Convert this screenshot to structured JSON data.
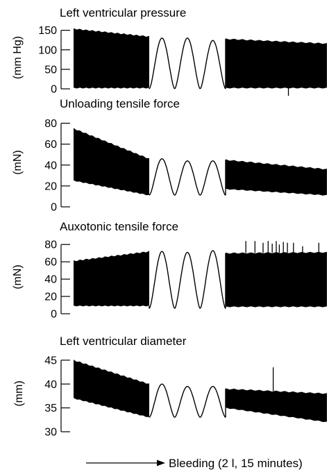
{
  "chart_data": [
    {
      "type": "line",
      "title": "Left ventricular pressure",
      "ylabel": "(mm Hg)",
      "ylim": [
        0,
        160
      ],
      "yticks": [
        0,
        50,
        100,
        150
      ],
      "band_start": {
        "max_from": 154,
        "max_to": 134,
        "min_from": 2,
        "min_to": 2
      },
      "cycles": [
        {
          "min": 0,
          "max": 130
        },
        {
          "min": 0,
          "max": 130
        },
        {
          "min": 0,
          "max": 124
        }
      ],
      "band_end": {
        "max_from": 128,
        "max_to": 116,
        "min_from": 2,
        "min_to": 2
      },
      "spikes": [
        {
          "pos": 0.62,
          "value": -18
        }
      ]
    },
    {
      "type": "line",
      "title": "Unloading tensile force",
      "ylabel": "(mN)",
      "ylim": [
        0,
        85
      ],
      "yticks": [
        0,
        20,
        40,
        60,
        80
      ],
      "band_start": {
        "max_from": 75,
        "max_to": 46,
        "min_from": 25,
        "min_to": 11
      },
      "cycles": [
        {
          "min": 11,
          "max": 46
        },
        {
          "min": 11,
          "max": 44
        },
        {
          "min": 11,
          "max": 44
        }
      ],
      "band_end": {
        "max_from": 45,
        "max_to": 36,
        "min_from": 17,
        "min_to": 11
      },
      "spikes": []
    },
    {
      "type": "line",
      "title": "Auxotonic tensile force",
      "ylabel": "(mN)",
      "ylim": [
        0,
        85
      ],
      "yticks": [
        0,
        20,
        40,
        60,
        80
      ],
      "band_start": {
        "max_from": 61,
        "max_to": 72,
        "min_from": 9,
        "min_to": 9
      },
      "cycles": [
        {
          "min": 6,
          "max": 72
        },
        {
          "min": 6,
          "max": 71
        },
        {
          "min": 6,
          "max": 73
        }
      ],
      "band_end": {
        "max_from": 70,
        "max_to": 71,
        "min_from": 8,
        "min_to": 8
      },
      "spikes": [
        {
          "pos": 0.2,
          "value": 84
        },
        {
          "pos": 0.29,
          "value": 84
        },
        {
          "pos": 0.37,
          "value": 82
        },
        {
          "pos": 0.42,
          "value": 84
        },
        {
          "pos": 0.46,
          "value": 81
        },
        {
          "pos": 0.5,
          "value": 84
        },
        {
          "pos": 0.53,
          "value": 80
        },
        {
          "pos": 0.57,
          "value": 83
        },
        {
          "pos": 0.61,
          "value": 82
        },
        {
          "pos": 0.67,
          "value": 82
        },
        {
          "pos": 0.76,
          "value": 78
        },
        {
          "pos": 0.92,
          "value": 82
        }
      ]
    },
    {
      "type": "line",
      "title": "Left ventricular diameter",
      "ylabel": "(mm)",
      "ylim": [
        30,
        46
      ],
      "yticks": [
        30,
        35,
        40,
        45
      ],
      "band_start": {
        "max_from": 45,
        "max_to": 40,
        "min_from": 37,
        "min_to": 33
      },
      "cycles": [
        {
          "min": 33,
          "max": 40
        },
        {
          "min": 33,
          "max": 39.5
        },
        {
          "min": 33,
          "max": 39.5
        }
      ],
      "band_end": {
        "max_from": 39,
        "max_to": 38,
        "min_from": 35,
        "min_to": 32
      },
      "spikes": [
        {
          "pos": 0.47,
          "value": 43.5
        }
      ]
    }
  ],
  "xlabel": "Bleeding (2 l, 15 minutes)"
}
